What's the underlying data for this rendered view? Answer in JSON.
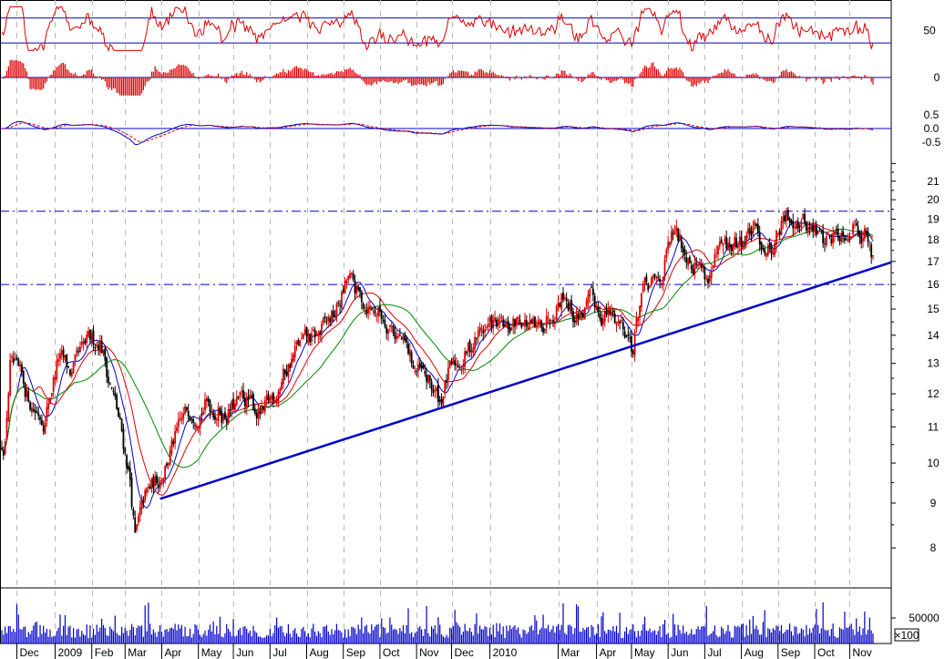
{
  "chart_data": [
    {
      "type": "line",
      "panel": "oscillator-rsi",
      "yticks": [
        50
      ],
      "ylim": [
        0,
        100
      ],
      "reference_levels": [
        30,
        70
      ],
      "colors": {
        "line": "#dd0000",
        "ref": "#0000cc"
      }
    },
    {
      "type": "bar",
      "panel": "momentum-histogram",
      "yticks": [
        0
      ],
      "colors": {
        "bar": "#dd0000",
        "ref": "#0000cc"
      }
    },
    {
      "type": "line",
      "panel": "macd",
      "yticks": [
        0.5,
        0.0,
        -0.5
      ],
      "ytick_labels": [
        "0.5",
        "0.0",
        "-0.5"
      ],
      "ylim": [
        -1.0,
        1.0
      ],
      "series": [
        {
          "color": "#0000cc",
          "style": "solid"
        },
        {
          "color": "#dd0000",
          "style": "dashed"
        }
      ]
    },
    {
      "type": "candlestick",
      "panel": "price",
      "scale": "log",
      "ylim": [
        7.2,
        22.5
      ],
      "yticks": [
        8,
        9,
        10,
        11,
        12,
        13,
        14,
        15,
        16,
        17,
        18,
        19,
        20,
        21
      ],
      "resistance_levels": [
        19.4,
        16.0
      ],
      "trendline": {
        "from": {
          "date": "2009-03-31",
          "price": 9.1
        },
        "to": {
          "date": "2010-11-20",
          "price": 16.7
        }
      },
      "price_anchors": [
        [
          "2008-11-20",
          10.6
        ],
        [
          "2008-11-25",
          13.0
        ],
        [
          "2008-12-05",
          12.2
        ],
        [
          "2008-12-15",
          11.6
        ],
        [
          "2008-12-24",
          11.3
        ],
        [
          "2009-01-05",
          13.2
        ],
        [
          "2009-01-15",
          12.6
        ],
        [
          "2009-01-28",
          13.6
        ],
        [
          "2009-02-09",
          13.9
        ],
        [
          "2009-02-15",
          12.6
        ],
        [
          "2009-02-25",
          11.0
        ],
        [
          "2009-03-05",
          9.6
        ],
        [
          "2009-03-10",
          8.2
        ],
        [
          "2009-03-18",
          9.1
        ],
        [
          "2009-03-31",
          9.7
        ],
        [
          "2009-04-10",
          10.5
        ],
        [
          "2009-04-25",
          11.6
        ],
        [
          "2009-05-10",
          11.7
        ],
        [
          "2009-05-25",
          11.4
        ],
        [
          "2009-06-10",
          11.8
        ],
        [
          "2009-06-25",
          11.3
        ],
        [
          "2009-07-10",
          12.5
        ],
        [
          "2009-07-25",
          13.6
        ],
        [
          "2009-08-10",
          13.9
        ],
        [
          "2009-08-25",
          14.8
        ],
        [
          "2009-09-05",
          16.2
        ],
        [
          "2009-09-15",
          15.4
        ],
        [
          "2009-09-28",
          15.0
        ],
        [
          "2009-10-10",
          14.5
        ],
        [
          "2009-10-20",
          13.8
        ],
        [
          "2009-10-30",
          12.8
        ],
        [
          "2009-11-10",
          12.4
        ],
        [
          "2009-11-20",
          11.8
        ],
        [
          "2009-11-28",
          12.6
        ],
        [
          "2009-12-10",
          13.2
        ],
        [
          "2009-12-25",
          14.2
        ],
        [
          "2010-01-05",
          14.4
        ],
        [
          "2010-01-15",
          14.1
        ],
        [
          "2010-01-28",
          14.7
        ],
        [
          "2010-02-10",
          14.0
        ],
        [
          "2010-02-25",
          15.3
        ],
        [
          "2010-03-05",
          15.8
        ],
        [
          "2010-03-15",
          14.7
        ],
        [
          "2010-03-28",
          15.2
        ],
        [
          "2010-04-10",
          14.8
        ],
        [
          "2010-04-25",
          14.4
        ],
        [
          "2010-05-03",
          13.6
        ],
        [
          "2010-05-10",
          15.6
        ],
        [
          "2010-05-25",
          16.1
        ],
        [
          "2010-06-05",
          18.2
        ],
        [
          "2010-06-15",
          17.6
        ],
        [
          "2010-06-25",
          17.0
        ],
        [
          "2010-07-05",
          16.3
        ],
        [
          "2010-07-15",
          17.4
        ],
        [
          "2010-07-28",
          17.7
        ],
        [
          "2010-08-10",
          18.4
        ],
        [
          "2010-08-25",
          17.6
        ],
        [
          "2010-09-05",
          18.8
        ],
        [
          "2010-09-15",
          19.3
        ],
        [
          "2010-09-28",
          18.6
        ],
        [
          "2010-10-10",
          18.0
        ],
        [
          "2010-10-25",
          18.5
        ],
        [
          "2010-11-05",
          18.9
        ],
        [
          "2010-11-12",
          18.5
        ],
        [
          "2010-11-18",
          17.3
        ]
      ],
      "moving_averages": [
        {
          "period": 10,
          "color": "#0000cc"
        },
        {
          "period": 20,
          "color": "#dd0000"
        },
        {
          "period": 40,
          "color": "#008800"
        }
      ],
      "colors": {
        "up_candle": "#dd0000",
        "down_candle": "#000000"
      }
    },
    {
      "type": "bar",
      "panel": "volume",
      "yticks": [
        50000
      ],
      "ytick_labels": [
        "50000"
      ],
      "unit_label": "×100",
      "colors": {
        "bar": "#0000cc"
      }
    }
  ],
  "x_axis": {
    "labels": [
      "Dec",
      "2009",
      "Feb",
      "Mar",
      "Apr",
      "May",
      "Jun",
      "Jul",
      "Aug",
      "Sep",
      "Oct",
      "Nov",
      "Dec",
      "2010",
      "Mar",
      "Apr",
      "May",
      "Jun",
      "Jul",
      "Aug",
      "Sep",
      "Oct",
      "Nov"
    ],
    "dates": [
      "2008-12-01",
      "2009-01-01",
      "2009-02-01",
      "2009-03-01",
      "2009-04-01",
      "2009-05-01",
      "2009-06-01",
      "2009-07-01",
      "2009-08-01",
      "2009-09-01",
      "2009-10-01",
      "2009-11-01",
      "2009-12-01",
      "2010-01-01",
      "2010-03-01",
      "2010-04-01",
      "2010-05-01",
      "2010-06-01",
      "2010-07-01",
      "2010-08-01",
      "2010-09-01",
      "2010-10-01",
      "2010-11-01"
    ],
    "range": [
      "2008-11-18",
      "2010-11-19"
    ]
  }
}
